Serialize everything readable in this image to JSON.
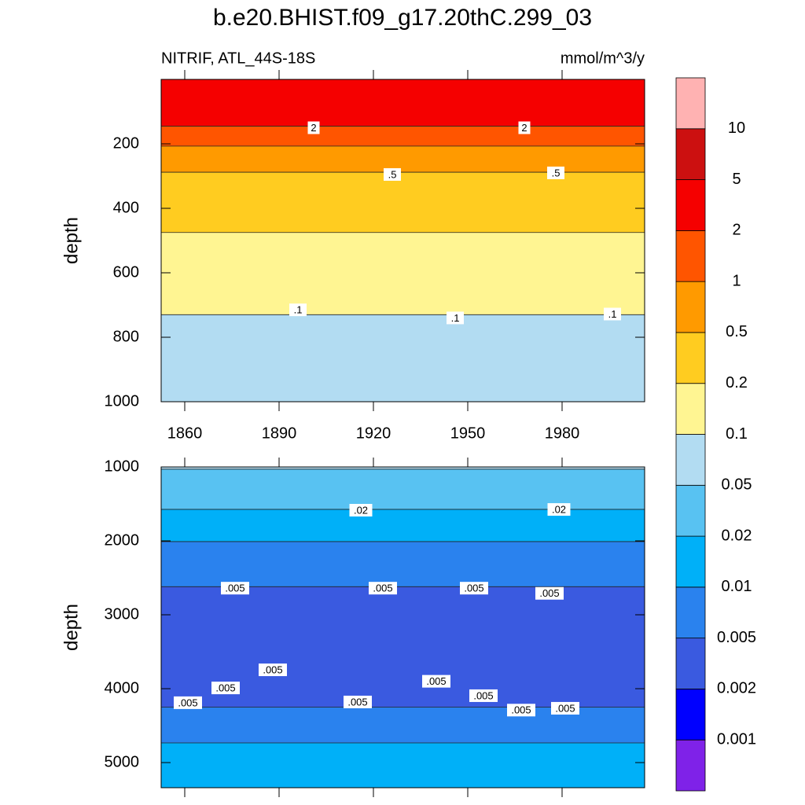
{
  "title": "b.e20.BHIST.f09_g17.20thC.299_03",
  "colorbar": {
    "levels": [
      0.001,
      0.002,
      0.005,
      0.01,
      0.02,
      0.05,
      0.1,
      0.2,
      0.5,
      1,
      2,
      5,
      10
    ],
    "colors": [
      "#7f22e8",
      "#0000ff",
      "#3a5ae0",
      "#2a82ee",
      "#00b0f8",
      "#58c2f2",
      "#b2dcf2",
      "#fff592",
      "#ffcc20",
      "#ff9a00",
      "#ff5500",
      "#f50000",
      "#cc1010",
      "#ffb2b2"
    ]
  },
  "chart_data": [
    {
      "type": "contour",
      "left_label": "NITRIF, ATL_44S-18S",
      "right_label": "mmol/m^3/y",
      "ylabel": "depth",
      "xlim": [
        1852.5,
        2006.25
      ],
      "xticks": [
        1860,
        1890,
        1920,
        1950,
        1980
      ],
      "ylim": [
        0,
        1000
      ],
      "yticks": [
        200,
        400,
        600,
        800,
        1000
      ],
      "bands": [
        {
          "range": [
            0,
            145
          ],
          "color": "#f50000"
        },
        {
          "range": [
            145,
            207
          ],
          "color": "#ff5500"
        },
        {
          "range": [
            207,
            288
          ],
          "color": "#ff9a00"
        },
        {
          "range": [
            288,
            475
          ],
          "color": "#ffcc20"
        },
        {
          "range": [
            475,
            730
          ],
          "color": "#fff592"
        },
        {
          "range": [
            730,
            1000
          ],
          "color": "#b2dcf2"
        }
      ],
      "contour_labels": [
        {
          "text": "2",
          "x": 1901,
          "depth": 150
        },
        {
          "text": "2",
          "x": 1968,
          "depth": 150
        },
        {
          "text": ".5",
          "x": 1926,
          "depth": 295
        },
        {
          "text": ".5",
          "x": 1978,
          "depth": 290
        },
        {
          "text": ".1",
          "x": 1896,
          "depth": 715
        },
        {
          "text": ".1",
          "x": 1946,
          "depth": 740
        },
        {
          "text": ".1",
          "x": 1996,
          "depth": 728
        }
      ]
    },
    {
      "type": "contour",
      "ylabel": "depth",
      "xlim": [
        1852.5,
        2006.25
      ],
      "xticks": [
        1860,
        1890,
        1920,
        1950,
        1980
      ],
      "ylim": [
        1000,
        5340
      ],
      "yticks": [
        1000,
        2000,
        3000,
        4000,
        5000
      ],
      "bands": [
        {
          "range": [
            1000,
            1030
          ],
          "color": "#b2dcf2"
        },
        {
          "range": [
            1030,
            1574
          ],
          "color": "#58c2f2"
        },
        {
          "range": [
            1574,
            2010
          ],
          "color": "#00b0f8"
        },
        {
          "range": [
            2010,
            2620
          ],
          "color": "#2a82ee"
        },
        {
          "range": [
            2620,
            4250
          ],
          "color": "#3a5ae0"
        },
        {
          "range": [
            4250,
            4734
          ],
          "color": "#2a82ee"
        },
        {
          "range": [
            4734,
            5340
          ],
          "color": "#00b0f8"
        }
      ],
      "contour_labels": [
        {
          "text": ".02",
          "x": 1916,
          "depth": 1585
        },
        {
          "text": ".02",
          "x": 1979,
          "depth": 1575
        },
        {
          "text": ".005",
          "x": 1876,
          "depth": 2640
        },
        {
          "text": ".005",
          "x": 1923,
          "depth": 2640
        },
        {
          "text": ".005",
          "x": 1952,
          "depth": 2640
        },
        {
          "text": ".005",
          "x": 1976,
          "depth": 2710
        },
        {
          "text": ".005",
          "x": 1888,
          "depth": 3745
        },
        {
          "text": ".005",
          "x": 1873,
          "depth": 3990
        },
        {
          "text": ".005",
          "x": 1861,
          "depth": 4190
        },
        {
          "text": ".005",
          "x": 1915,
          "depth": 4180
        },
        {
          "text": ".005",
          "x": 1940,
          "depth": 3900
        },
        {
          "text": ".005",
          "x": 1955,
          "depth": 4095
        },
        {
          "text": ".005",
          "x": 1967,
          "depth": 4290
        },
        {
          "text": ".005",
          "x": 1981,
          "depth": 4265
        }
      ]
    }
  ]
}
